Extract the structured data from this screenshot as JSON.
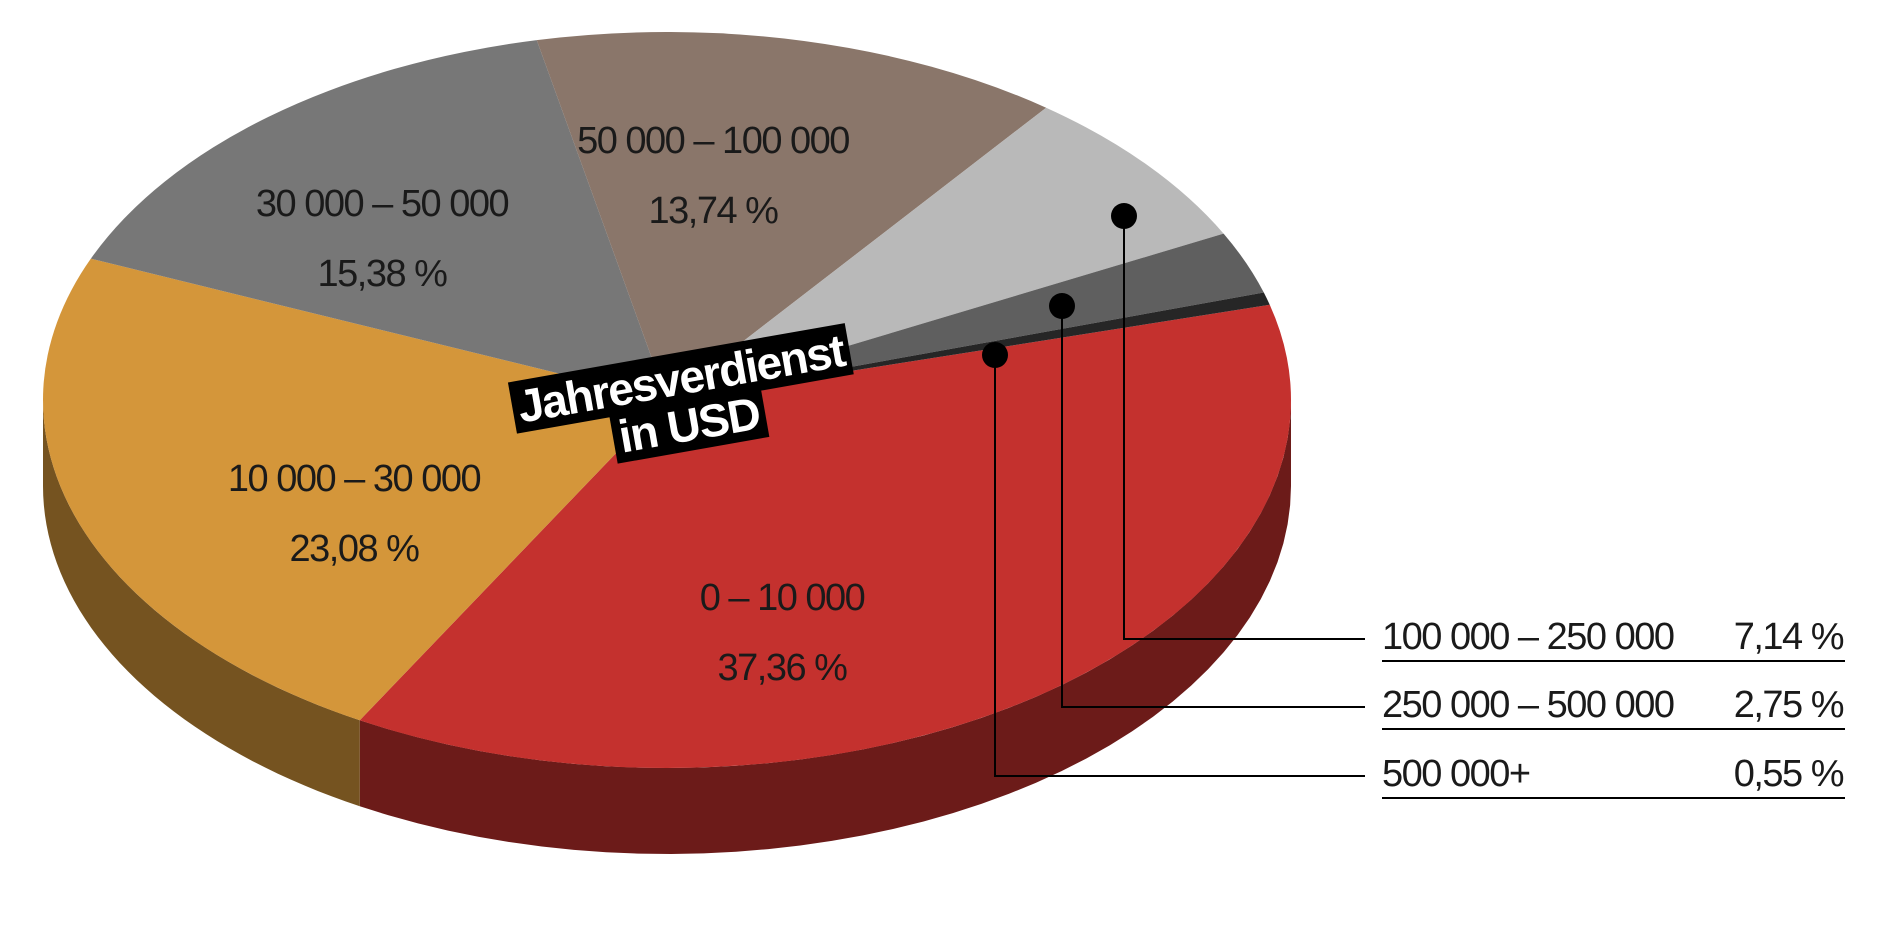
{
  "chart_data": {
    "type": "pie",
    "title": "Jahresverdienst in USD",
    "categories": [
      "0 – 10 000",
      "10 000 – 30 000",
      "30 000 – 50 000",
      "50 000 – 100 000",
      "100 000 – 250 000",
      "250 000 – 500 000",
      "500 000+"
    ],
    "values": [
      37.36,
      23.08,
      15.38,
      13.74,
      7.14,
      2.75,
      0.55
    ],
    "value_labels": [
      "37,36 %",
      "23,08 %",
      "15,38 %",
      "13,74 %",
      "7,14 %",
      "2,75 %",
      "0,55 %"
    ],
    "colors": [
      "#c4312e",
      "#d4963a",
      "#777777",
      "#8a766a",
      "#b9b9b9",
      "#5f5f5f",
      "#262626"
    ]
  }
}
